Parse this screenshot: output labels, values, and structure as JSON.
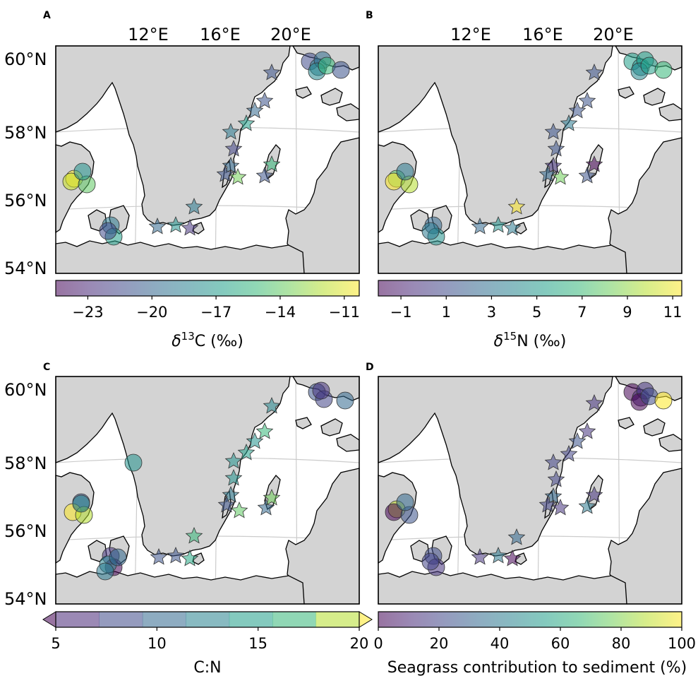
{
  "panels": [
    {
      "letter": "A",
      "lon_labels": [
        "12°E",
        "16°E",
        "20°E"
      ],
      "lat_labels": [
        "60°N",
        "58°N",
        "56°N",
        "54°N"
      ],
      "colorbar": {
        "colormap": "viridis",
        "ticks": [
          "−23",
          "−20",
          "−17",
          "−14",
          "−11"
        ],
        "tick_values": [
          -23,
          -20,
          -17,
          -14,
          -11
        ],
        "range": [
          -24.5,
          -10.3
        ],
        "discrete": false,
        "extend": false,
        "title_prefix": "δ",
        "title_sup": "13",
        "title_suffix": "C (‰)"
      }
    },
    {
      "letter": "B",
      "lon_labels": [
        "12°E",
        "16°E",
        "20°E"
      ],
      "lat_labels": [],
      "colorbar": {
        "colormap": "viridis",
        "ticks": [
          "−1",
          "1",
          "3",
          "5",
          "7",
          "9",
          "11"
        ],
        "tick_values": [
          -1,
          1,
          3,
          5,
          7,
          9,
          11
        ],
        "range": [
          -2.0,
          11.4
        ],
        "discrete": false,
        "extend": false,
        "title_prefix": "δ",
        "title_sup": "15",
        "title_suffix": "N (‰)"
      }
    },
    {
      "letter": "C",
      "lon_labels": [],
      "lat_labels": [
        "60°N",
        "58°N",
        "56°N",
        "54°N"
      ],
      "colorbar": {
        "colormap": "viridis",
        "ticks": [
          "5",
          "10",
          "15",
          "20"
        ],
        "tick_values": [
          5,
          10,
          15,
          20
        ],
        "range": [
          5,
          20
        ],
        "discrete": true,
        "extend": true,
        "title_prefix": "",
        "title_sup": "",
        "title_suffix": "C:N"
      }
    },
    {
      "letter": "D",
      "lon_labels": [],
      "lat_labels": [],
      "colorbar": {
        "colormap": "viridis",
        "ticks": [
          "0",
          "20",
          "40",
          "60",
          "80",
          "100"
        ],
        "tick_values": [
          0,
          20,
          40,
          60,
          80,
          100
        ],
        "range": [
          0,
          100
        ],
        "discrete": false,
        "extend": false,
        "title_prefix": "",
        "title_sup": "",
        "title_suffix": "Seagrass contribution to sediment (%)"
      }
    }
  ],
  "marker_colors": {
    "A": {
      "circles": [
        "#3f4a8a",
        "#2b7f8e",
        "#2f6b8e",
        "#24868e",
        "#35b779",
        "#3b528b",
        "#fde725",
        "#c8e020",
        "#5ec962",
        "#21918c",
        "#2a788e",
        "#1f9e89",
        "#3f4a8a"
      ],
      "stars": [
        "#3b528b",
        "#3b528b",
        "#31688e",
        "#1f9e89",
        "#2a788e",
        "#414487",
        "#31688e",
        "#3b528b",
        "#73d055",
        "#3b528b",
        "#35b779",
        "#2a788e",
        "#21918c",
        "#31688e",
        "#46337e"
      ]
    },
    "B": {
      "circles": [
        "#1f9e89",
        "#21918c",
        "#1f9e89",
        "#24868e",
        "#1f9e89",
        "#35b779",
        "#5ec962",
        "#fde725",
        "#b5de2b",
        "#2a788e",
        "#31688e",
        "#21918c",
        "#2a788e"
      ],
      "stars": [
        "#3b528b",
        "#3b528b",
        "#3b528b",
        "#2a788e",
        "#3b528b",
        "#3b528b",
        "#46337e",
        "#31688e",
        "#6ece58",
        "#3b528b",
        "#440154",
        "#fde725",
        "#21918c",
        "#31688e",
        "#2a788e"
      ]
    },
    "C": {
      "circles": [
        "#3b528b",
        "#414487",
        "#46337e",
        "#31688e",
        "#21918c",
        "#3b528b",
        "#fde725",
        "#b5de2b",
        "#24868e",
        "#46337e",
        "#440154",
        "#26828e",
        "#31688e",
        "#2a788e"
      ],
      "stars": [
        "#24868e",
        "#35b779",
        "#21918c",
        "#1f9e89",
        "#21918c",
        "#21918c",
        "#2a788e",
        "#3b528b",
        "#5ec962",
        "#31688e",
        "#6ece58",
        "#35b779",
        "#3b528b",
        "#3b528b",
        "#22a884"
      ]
    },
    "D": {
      "circles": [
        "#440154",
        "#482878",
        "#46337e",
        "#440154",
        "#3e4a89",
        "#fde725",
        "#c2df23",
        "#440154",
        "#3b528b",
        "#31688e",
        "#3e4a89",
        "#46337e",
        "#414487"
      ],
      "stars": [
        "#46337e",
        "#46337e",
        "#3b528b",
        "#414487",
        "#414487",
        "#414487",
        "#31688e",
        "#414487",
        "#46337e",
        "#2a788e",
        "#46337e",
        "#31688e",
        "#2a788e",
        "#46337e",
        "#440154"
      ]
    }
  }
}
